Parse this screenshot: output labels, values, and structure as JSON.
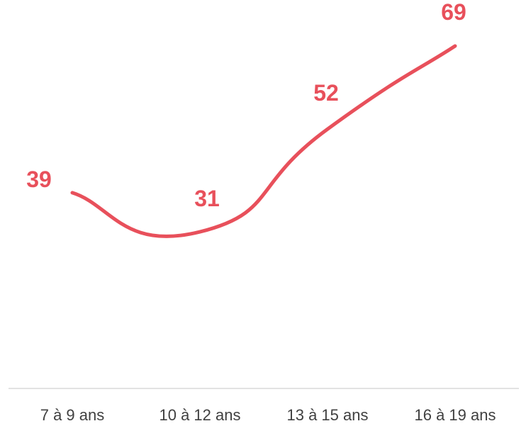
{
  "chart_data": {
    "type": "line",
    "categories": [
      "7 à 9 ans",
      "10 à 12 ans",
      "13 à 15 ans",
      "16 à 19 ans"
    ],
    "series": [
      {
        "values": [
          39,
          31,
          52,
          69
        ],
        "color": "#E8505B"
      }
    ],
    "data_labels": [
      "39",
      "31",
      "52",
      "69"
    ],
    "title": "",
    "xlabel": "",
    "ylabel": "",
    "ylim": [
      0,
      75
    ],
    "grid": false,
    "legend": "none",
    "smooth": true,
    "axis_line_color": "#D9D9D9"
  }
}
